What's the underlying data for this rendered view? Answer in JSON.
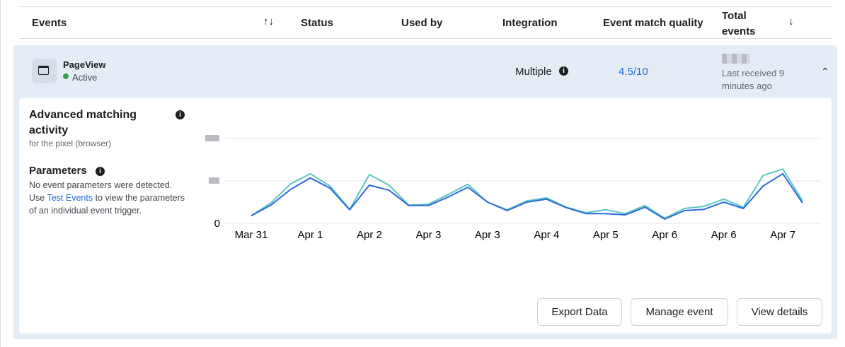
{
  "table": {
    "headers": [
      "Events",
      "Status",
      "Used by",
      "Integration",
      "Event match quality",
      "Total events"
    ]
  },
  "row": {
    "event": "PageView",
    "status": "Active",
    "integration": "Multiple",
    "match_quality": "4.5/10",
    "last_received": "Last received 9 minutes ago"
  },
  "panel": {
    "title": "Advanced matching activity",
    "subtitle": "for the pixel (browser)",
    "parameters_title": "Parameters",
    "parameters_text_1": "No event parameters were detected. Use ",
    "parameters_link": "Test Events",
    "parameters_text_2": " to view the parameters of an individual event trigger."
  },
  "buttons": [
    "Export Data",
    "Manage event",
    "View details"
  ],
  "chart_data": {
    "type": "line",
    "categories": [
      "Mar 31",
      null,
      null,
      "Apr 1",
      null,
      null,
      "Apr 2",
      null,
      null,
      "Apr 3",
      null,
      null,
      "Apr 3",
      null,
      null,
      "Apr 4",
      null,
      null,
      "Apr 5",
      null,
      null,
      "Apr 6",
      null,
      null,
      "Apr 6",
      null,
      null,
      "Apr 7",
      null
    ],
    "series": [
      {
        "color": "#5cc7c3",
        "values": [
          0.18,
          0.48,
          0.93,
          1.17,
          0.88,
          0.33,
          1.15,
          0.9,
          0.43,
          0.45,
          0.68,
          0.92,
          0.5,
          0.32,
          0.53,
          0.6,
          0.38,
          0.25,
          0.32,
          0.23,
          0.42,
          0.12,
          0.35,
          0.4,
          0.57,
          0.38,
          1.13,
          1.28,
          0.53
        ]
      },
      {
        "color": "#2d6bd8",
        "values": [
          0.18,
          0.43,
          0.8,
          1.07,
          0.83,
          0.32,
          0.9,
          0.78,
          0.42,
          0.42,
          0.62,
          0.85,
          0.5,
          0.3,
          0.5,
          0.57,
          0.37,
          0.23,
          0.23,
          0.2,
          0.38,
          0.1,
          0.3,
          0.33,
          0.5,
          0.35,
          0.88,
          1.17,
          0.48
        ]
      }
    ],
    "ylim": [
      0,
      2
    ],
    "yticks": [
      0
    ],
    "grid": true
  }
}
